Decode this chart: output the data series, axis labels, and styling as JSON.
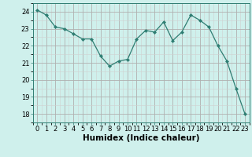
{
  "x": [
    0,
    1,
    2,
    3,
    4,
    5,
    6,
    7,
    8,
    9,
    10,
    11,
    12,
    13,
    14,
    15,
    16,
    17,
    18,
    19,
    20,
    21,
    22,
    23
  ],
  "y": [
    24.1,
    23.8,
    23.1,
    23.0,
    22.7,
    22.4,
    22.4,
    21.4,
    20.8,
    21.1,
    21.2,
    22.4,
    22.9,
    22.8,
    23.4,
    22.3,
    22.8,
    23.8,
    23.5,
    23.1,
    22.0,
    21.1,
    19.5,
    18.0
  ],
  "line_color": "#2e7d72",
  "marker": "D",
  "marker_size": 2.2,
  "bg_color": "#cff0ec",
  "major_grid_color": "#b0b0b0",
  "minor_grid_color": "#d0d0d0",
  "xlabel": "Humidex (Indice chaleur)",
  "xlabel_fontsize": 7.5,
  "ylim": [
    17.5,
    24.5
  ],
  "xlim": [
    -0.5,
    23.5
  ],
  "yticks": [
    18,
    19,
    20,
    21,
    22,
    23,
    24
  ],
  "xticks": [
    0,
    1,
    2,
    3,
    4,
    5,
    6,
    7,
    8,
    9,
    10,
    11,
    12,
    13,
    14,
    15,
    16,
    17,
    18,
    19,
    20,
    21,
    22,
    23
  ],
  "tick_fontsize": 6.0
}
